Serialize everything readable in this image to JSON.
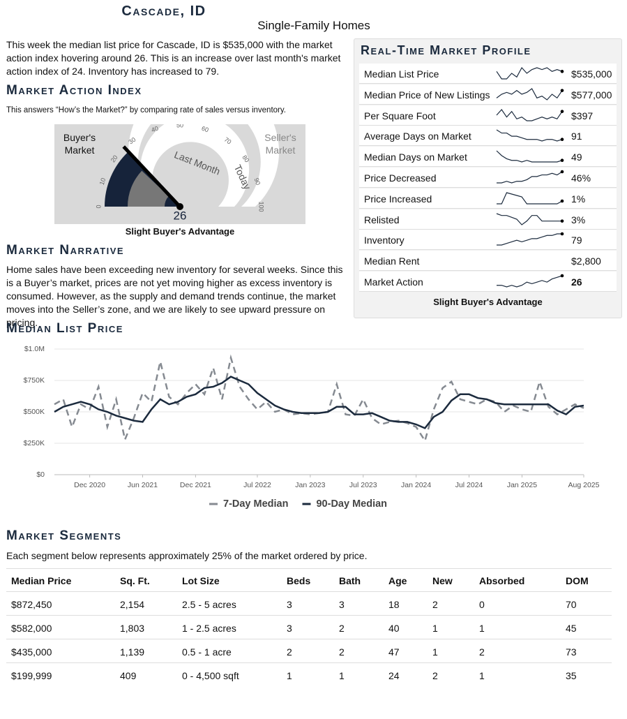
{
  "header": {
    "title": "Cascade, ID",
    "subtitle": "Single-Family Homes"
  },
  "intro": "This week the median list price for Cascade, ID is $535,000 with the market action index hovering around 26. This is an increase over last month's market action index of 24. Inventory has increased to 79.",
  "market_action_index": {
    "heading": "Market Action Index",
    "description": "This answers “How’s the Market?” by comparing rate of sales versus inventory.",
    "gauge": {
      "buyers_label": "Buyer's Market",
      "sellers_label": "Seller's Market",
      "ticks": [
        0,
        10,
        20,
        30,
        40,
        50,
        60,
        70,
        80,
        90,
        100
      ],
      "value": 26,
      "last_month": 24,
      "last_month_label": "Last Month",
      "today_label": "Today"
    },
    "caption": "Slight Buyer's Advantage"
  },
  "profile": {
    "title": "Real-Time Market Profile",
    "rows": [
      {
        "label": "Median List Price",
        "value": "$535,000",
        "trend": [
          6,
          2,
          2,
          5,
          3,
          8,
          5,
          7,
          8,
          7,
          8,
          6,
          7,
          6
        ]
      },
      {
        "label": "Median Price of New Listings",
        "value": "$577,000",
        "trend": [
          3,
          5,
          6,
          5,
          7,
          5,
          6,
          8,
          3,
          4,
          2,
          5,
          3,
          7
        ]
      },
      {
        "label": "Per Square Foot",
        "value": "$397",
        "trend": [
          6,
          9,
          5,
          8,
          4,
          5,
          3,
          3,
          4,
          5,
          4,
          5,
          4,
          8
        ]
      },
      {
        "label": "Average Days on Market",
        "value": "91",
        "trend": [
          9,
          7,
          7,
          5,
          5,
          4,
          3,
          3,
          3,
          2,
          3,
          3,
          2,
          3
        ]
      },
      {
        "label": "Median Days on Market",
        "value": "49",
        "trend": [
          9,
          6,
          4,
          3,
          3,
          2,
          3,
          2,
          2,
          2,
          2,
          2,
          2,
          3
        ]
      },
      {
        "label": "Price Decreased",
        "value": "46%",
        "trend": [
          2,
          2,
          3,
          2,
          3,
          3,
          4,
          6,
          6,
          7,
          7,
          8,
          7,
          9
        ]
      },
      {
        "label": "Price Increased",
        "value": "1%",
        "trend": [
          1,
          1,
          9,
          8,
          7,
          6,
          1,
          1,
          1,
          1,
          1,
          1,
          1,
          3
        ]
      },
      {
        "label": "Relisted",
        "value": "3%",
        "trend": [
          8,
          7,
          7,
          6,
          5,
          2,
          4,
          7,
          7,
          4,
          4,
          4,
          4,
          4
        ]
      },
      {
        "label": "Inventory",
        "value": "79",
        "trend": [
          2,
          2,
          3,
          4,
          5,
          4,
          5,
          6,
          6,
          7,
          8,
          8,
          9,
          9
        ]
      },
      {
        "label": "Median Rent",
        "value": "$2,800"
      },
      {
        "label": "Market Action",
        "value": "26",
        "trend": [
          3,
          3,
          2,
          3,
          2,
          3,
          5,
          4,
          5,
          6,
          5,
          7,
          8,
          9
        ]
      }
    ],
    "caption": "Slight Buyer's Advantage"
  },
  "narrative": {
    "heading": "Market Narrative",
    "text": "Home sales have been exceeding new inventory for several weeks. Since this is a Buyer’s market, prices are not yet moving higher as excess inventory is consumed. However, as the supply and demand trends continue, the market moves into the Seller’s zone, and we are likely to see upward pressure on pricing."
  },
  "chart_data": {
    "type": "line",
    "title": "Median List Price",
    "x": [
      "2020-08",
      "2020-09",
      "2020-10",
      "2020-11",
      "2020-12",
      "2021-01",
      "2021-02",
      "2021-03",
      "2021-04",
      "2021-05",
      "2021-06",
      "2021-07",
      "2021-08",
      "2021-09",
      "2021-10",
      "2021-11",
      "2021-12",
      "2022-01",
      "2022-02",
      "2022-03",
      "2022-04",
      "2022-05",
      "2022-06",
      "2022-07",
      "2022-08",
      "2022-09",
      "2022-10",
      "2022-11",
      "2022-12",
      "2023-01",
      "2023-02",
      "2023-03",
      "2023-04",
      "2023-05",
      "2023-06",
      "2023-07",
      "2023-08",
      "2023-09",
      "2023-10",
      "2023-11",
      "2023-12",
      "2024-01",
      "2024-02",
      "2024-03",
      "2024-04",
      "2024-05",
      "2024-06",
      "2024-07",
      "2024-08",
      "2024-09",
      "2024-10",
      "2024-11",
      "2024-12",
      "2025-01",
      "2025-02",
      "2025-03",
      "2025-04",
      "2025-05",
      "2025-06",
      "2025-07",
      "2025-08"
    ],
    "xticks": [
      {
        "value": "2020-12",
        "label": "Dec 2020"
      },
      {
        "value": "2021-06",
        "label": "Jun 2021"
      },
      {
        "value": "2021-12",
        "label": "Dec 2021"
      },
      {
        "value": "2022-07",
        "label": "Jul 2022"
      },
      {
        "value": "2023-01",
        "label": "Jan 2023"
      },
      {
        "value": "2023-07",
        "label": "Jul 2023"
      },
      {
        "value": "2024-01",
        "label": "Jan 2024"
      },
      {
        "value": "2024-07",
        "label": "Jul 2024"
      },
      {
        "value": "2025-01",
        "label": "Jan 2025"
      },
      {
        "value": "2025-08",
        "label": "Aug 2025"
      }
    ],
    "ylim": [
      0,
      1000000
    ],
    "yticks": [
      {
        "value": 0,
        "label": "$0"
      },
      {
        "value": 250000,
        "label": "$250K"
      },
      {
        "value": 500000,
        "label": "$500K"
      },
      {
        "value": 750000,
        "label": "$750K"
      },
      {
        "value": 1000000,
        "label": "$1.0M"
      }
    ],
    "grid": true,
    "series": [
      {
        "name": "7-Day Median",
        "color": "#858a91",
        "dashed": true,
        "values": [
          560000,
          600000,
          380000,
          560000,
          520000,
          700000,
          380000,
          600000,
          280000,
          450000,
          650000,
          580000,
          900000,
          620000,
          560000,
          650000,
          720000,
          640000,
          850000,
          600000,
          930000,
          700000,
          600000,
          520000,
          580000,
          500000,
          520000,
          480000,
          490000,
          480000,
          490000,
          500000,
          720000,
          480000,
          470000,
          600000,
          450000,
          400000,
          420000,
          430000,
          410000,
          380000,
          270000,
          520000,
          690000,
          740000,
          600000,
          580000,
          560000,
          600000,
          580000,
          500000,
          550000,
          520000,
          500000,
          740000,
          540000,
          480000,
          520000,
          560000,
          530000
        ]
      },
      {
        "name": "90-Day Median",
        "color": "#1b2a3d",
        "dashed": false,
        "values": [
          500000,
          540000,
          560000,
          580000,
          560000,
          520000,
          500000,
          470000,
          450000,
          430000,
          420000,
          520000,
          600000,
          560000,
          580000,
          620000,
          640000,
          690000,
          700000,
          730000,
          780000,
          750000,
          720000,
          650000,
          600000,
          550000,
          520000,
          500000,
          490000,
          490000,
          490000,
          500000,
          540000,
          540000,
          480000,
          480000,
          490000,
          460000,
          430000,
          420000,
          420000,
          400000,
          370000,
          460000,
          500000,
          590000,
          640000,
          640000,
          610000,
          600000,
          570000,
          560000,
          560000,
          560000,
          560000,
          560000,
          560000,
          510000,
          480000,
          540000,
          550000
        ]
      }
    ]
  },
  "segments": {
    "heading": "Market Segments",
    "description": "Each segment below represents approximately 25% of the market ordered by price.",
    "columns": [
      "Median Price",
      "Sq. Ft.",
      "Lot Size",
      "Beds",
      "Bath",
      "Age",
      "New",
      "Absorbed",
      "DOM"
    ],
    "rows": [
      [
        "$872,450",
        "2,154",
        "2.5 - 5 acres",
        "3",
        "3",
        "18",
        "2",
        "0",
        "70"
      ],
      [
        "$582,000",
        "1,803",
        "1 - 2.5 acres",
        "3",
        "2",
        "40",
        "1",
        "1",
        "45"
      ],
      [
        "$435,000",
        "1,139",
        "0.5 - 1 acre",
        "2",
        "2",
        "47",
        "1",
        "2",
        "73"
      ],
      [
        "$199,999",
        "409",
        "0 - 4,500 sqft",
        "1",
        "1",
        "24",
        "2",
        "1",
        "35"
      ]
    ]
  }
}
